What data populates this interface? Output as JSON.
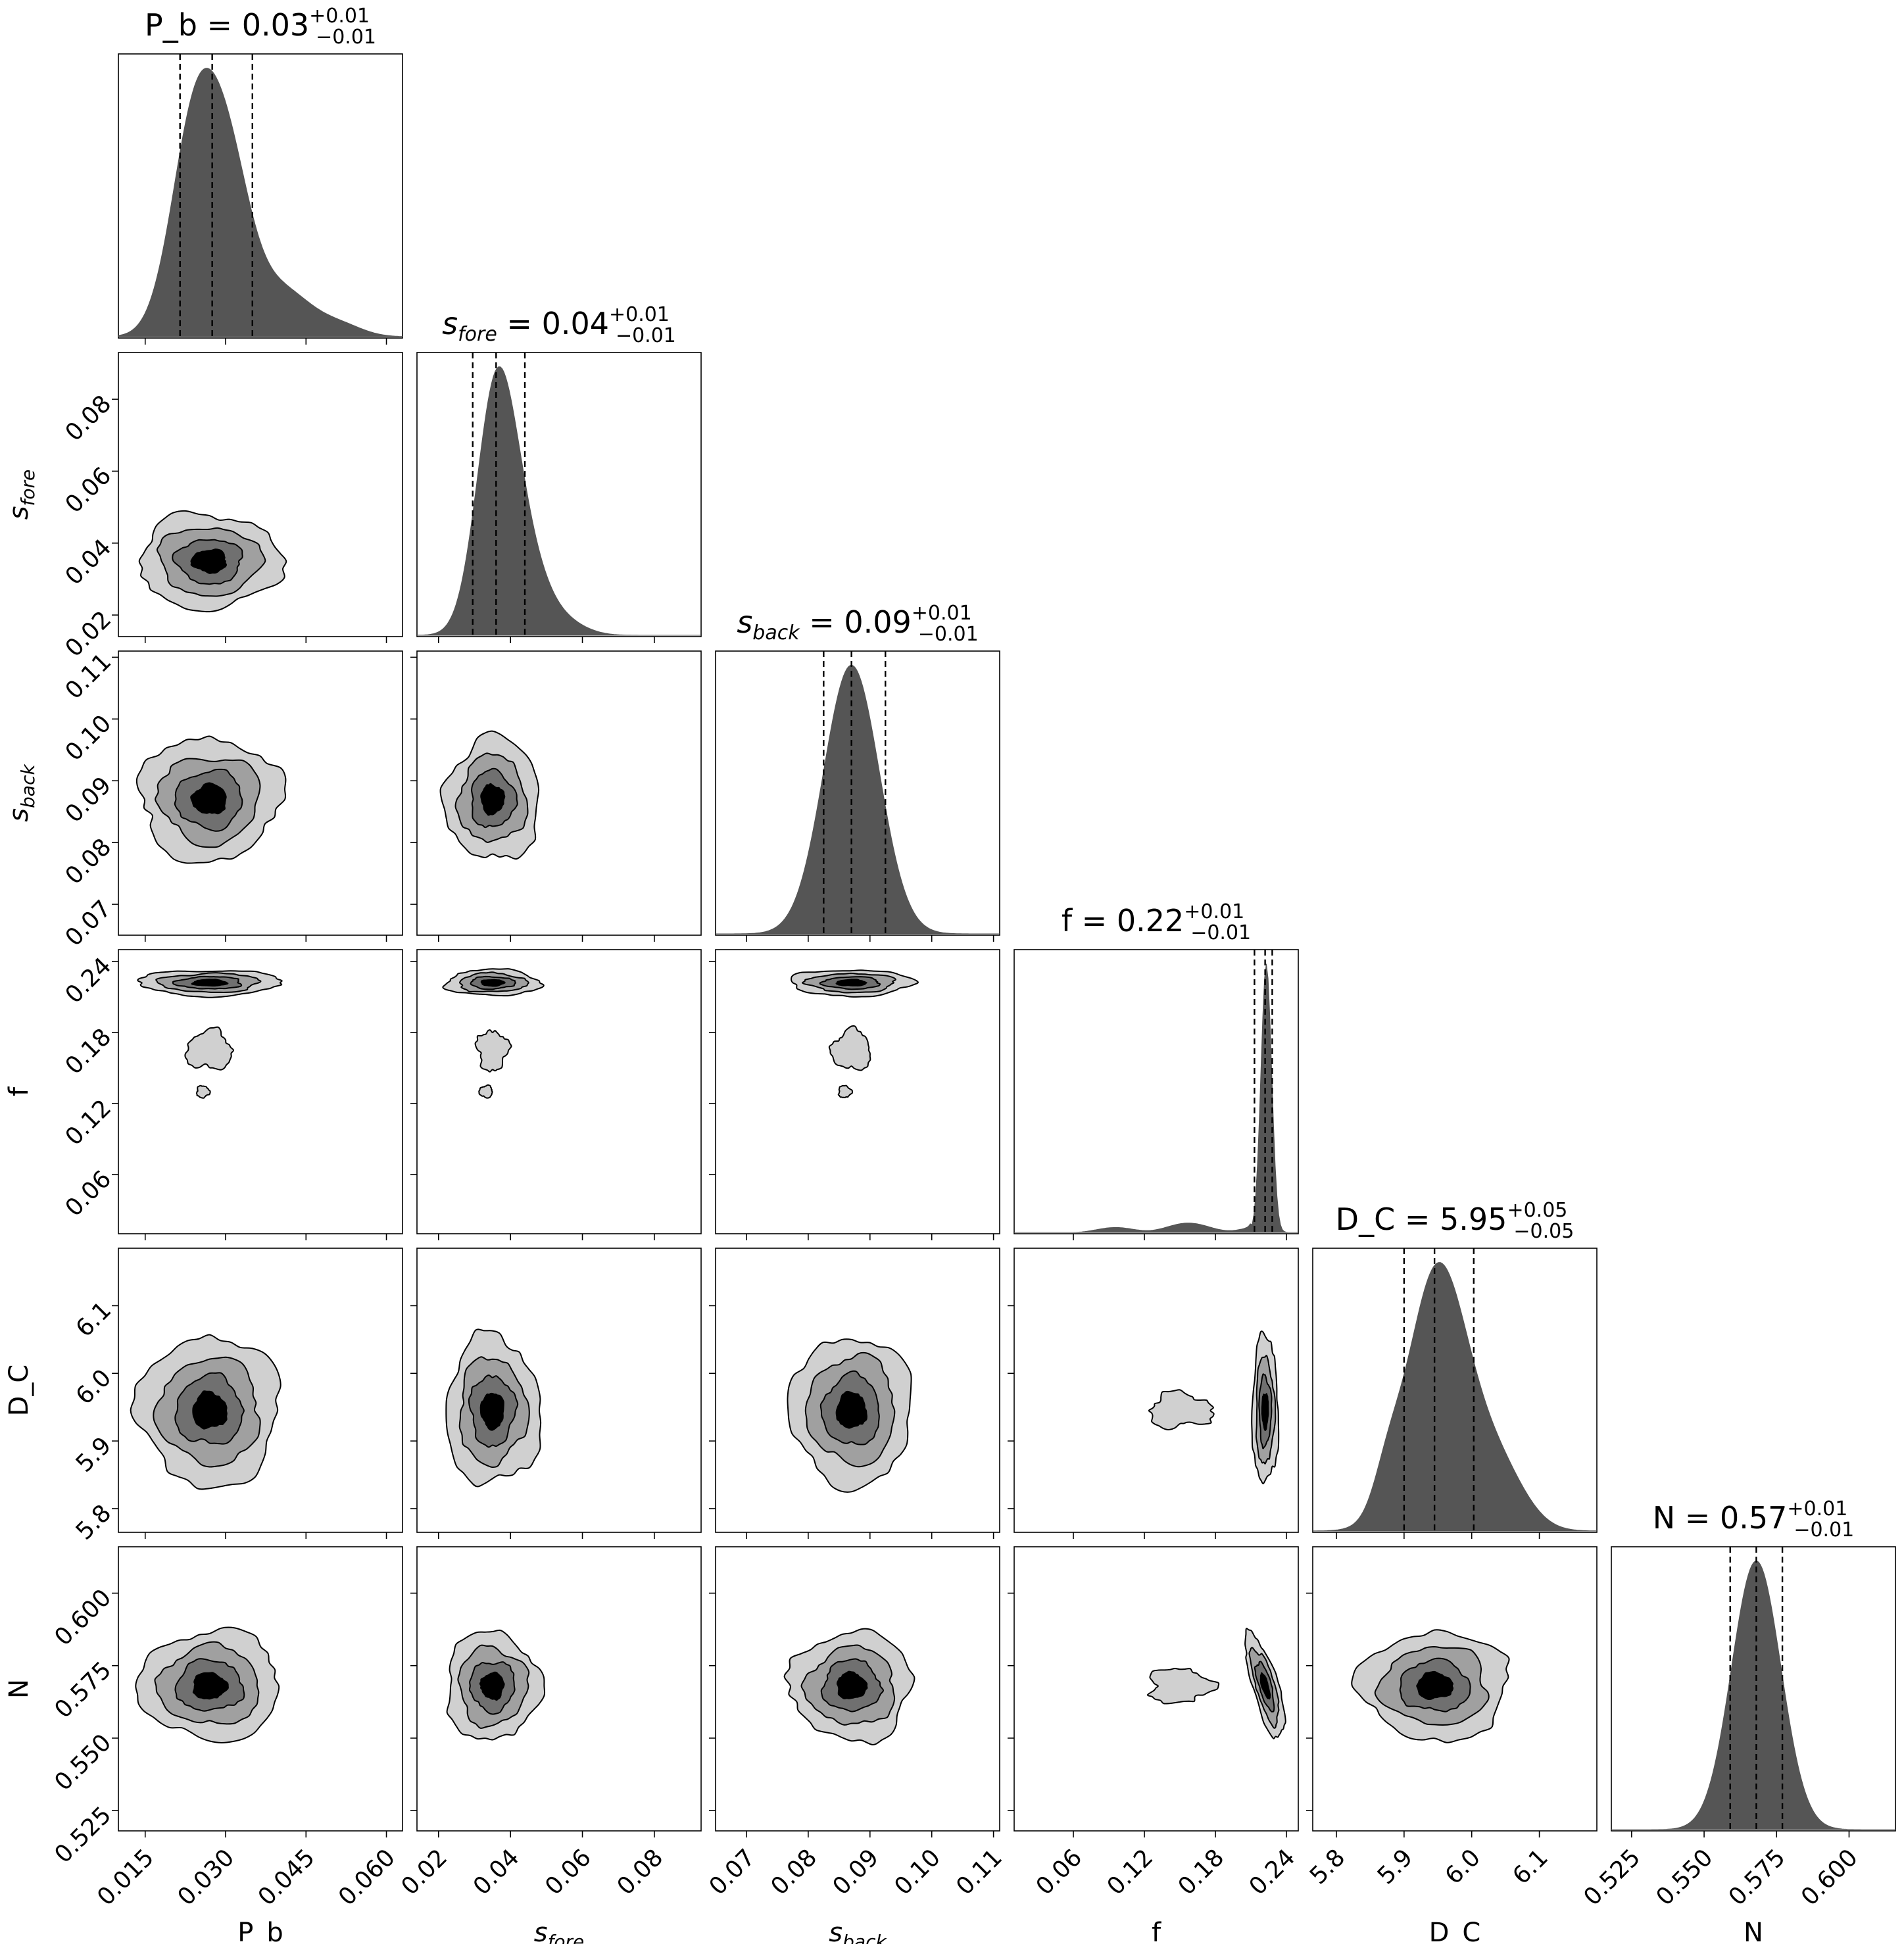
{
  "chart_data": {
    "type": "corner",
    "parameters": [
      {
        "key": "P_b",
        "label": "P_b",
        "label_base": "P_b",
        "label_sub": "",
        "title_value": "0.03",
        "plus": "+0.01",
        "minus": "−0.01",
        "range": [
          0.01,
          0.063
        ],
        "ticks": [
          "0.015",
          "0.030",
          "0.045",
          "0.060"
        ],
        "tick_values": [
          0.015,
          0.03,
          0.045,
          0.06
        ],
        "quantiles": [
          0.0215,
          0.0275,
          0.035
        ],
        "center": 0.027,
        "spread": 0.006
      },
      {
        "key": "s_fore",
        "label": "s_fore",
        "label_base": "s",
        "label_sub": "fore",
        "title_value": "0.04",
        "plus": "+0.01",
        "minus": "−0.01",
        "range": [
          0.014,
          0.093
        ],
        "ticks": [
          "0.02",
          "0.04",
          "0.06",
          "0.08"
        ],
        "tick_values": [
          0.02,
          0.04,
          0.06,
          0.08
        ],
        "quantiles": [
          0.0295,
          0.036,
          0.044
        ],
        "center": 0.035,
        "spread": 0.006
      },
      {
        "key": "s_back",
        "label": "s_back",
        "label_base": "s",
        "label_sub": "back",
        "title_value": "0.09",
        "plus": "+0.01",
        "minus": "−0.01",
        "range": [
          0.065,
          0.111
        ],
        "ticks": [
          "0.07",
          "0.08",
          "0.09",
          "0.10",
          "0.11"
        ],
        "tick_values": [
          0.07,
          0.08,
          0.09,
          0.1,
          0.11
        ],
        "quantiles": [
          0.0825,
          0.087,
          0.0925
        ],
        "center": 0.087,
        "spread": 0.0045
      },
      {
        "key": "f",
        "label": "f",
        "label_base": "f",
        "label_sub": "",
        "title_value": "0.22",
        "plus": "+0.01",
        "minus": "−0.01",
        "range": [
          0.01,
          0.25
        ],
        "ticks": [
          "0.06",
          "0.12",
          "0.18",
          "0.24"
        ],
        "tick_values": [
          0.06,
          0.12,
          0.18,
          0.24
        ],
        "quantiles": [
          0.213,
          0.222,
          0.228
        ],
        "center": 0.222,
        "spread": 0.005
      },
      {
        "key": "D_C",
        "label": "D_C",
        "label_base": "D_C",
        "label_sub": "",
        "title_value": "5.95",
        "plus": "+0.05",
        "minus": "−0.05",
        "range": [
          5.765,
          6.185
        ],
        "ticks": [
          "5.8",
          "5.9",
          "6.0",
          "6.1"
        ],
        "tick_values": [
          5.8,
          5.9,
          6.0,
          6.1
        ],
        "quantiles": [
          5.9,
          5.945,
          6.003
        ],
        "center": 5.945,
        "spread": 0.05
      },
      {
        "key": "N",
        "label": "N",
        "label_base": "N",
        "label_sub": "",
        "title_value": "0.57",
        "plus": "+0.01",
        "minus": "−0.01",
        "range": [
          0.518,
          0.616
        ],
        "ticks": [
          "0.525",
          "0.550",
          "0.575",
          "0.600"
        ],
        "tick_values": [
          0.525,
          0.55,
          0.575,
          0.6
        ],
        "quantiles": [
          0.559,
          0.568,
          0.577
        ],
        "center": 0.568,
        "spread": 0.0085
      }
    ],
    "contour_levels": 4,
    "colors": {
      "hist": "#555555",
      "levels": [
        "#d0d0d0",
        "#a0a0a0",
        "#707070",
        "#000000"
      ],
      "quantile_line": "#000000"
    }
  }
}
